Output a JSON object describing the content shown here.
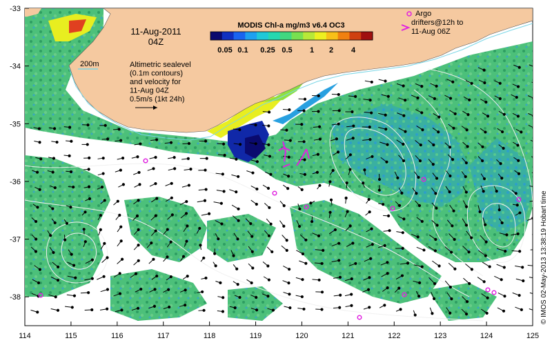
{
  "title": {
    "date": "11-Aug-2011",
    "time": "04Z"
  },
  "colorbar": {
    "title": "MODIS Chl-a mg/m3 v6.4 OC3",
    "ticks": [
      "0.05",
      "0.1",
      "0.25",
      "0.5",
      "1",
      "2",
      "4"
    ],
    "colors": [
      "#0a0a6e",
      "#1030c0",
      "#1a64f0",
      "#1ea0f0",
      "#20c8d8",
      "#26d8b0",
      "#40d880",
      "#78e050",
      "#b8e838",
      "#eef020",
      "#f8c018",
      "#f08010",
      "#d04010",
      "#a01010"
    ]
  },
  "legend": {
    "contour_label": "200m",
    "altimetry_lines": [
      "Altimetric sealevel",
      "(0.1m contours)",
      "and velocity for",
      "11-Aug 04Z",
      "0.5m/s (1kt 24h)"
    ],
    "argo_lines": [
      "Argo",
      "drifters@12h to",
      "11-Aug 06Z"
    ]
  },
  "axes": {
    "x_ticks": [
      "114",
      "115",
      "116",
      "117",
      "118",
      "119",
      "120",
      "121",
      "122",
      "123",
      "124",
      "125"
    ],
    "y_ticks": [
      "-33",
      "-34",
      "-35",
      "-36",
      "-37",
      "-38"
    ]
  },
  "credit": "© IMOS 02-May-2013 13:38:19 Hobart time",
  "colors": {
    "land": "#f5c9a0",
    "ocean_chl": "#4cc07a",
    "cloud": "#ffffff",
    "argo": "#e020e0",
    "contour": "#f0f0f0"
  }
}
